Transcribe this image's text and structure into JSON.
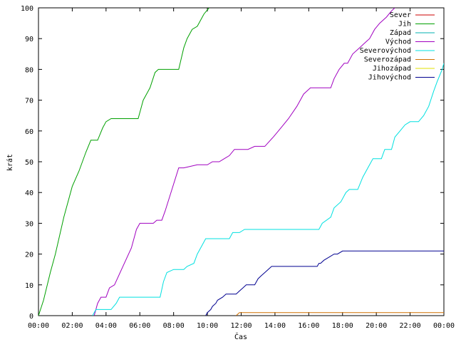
{
  "chart_data": {
    "type": "line",
    "title": "",
    "xlabel": "Čas",
    "ylabel": "krát",
    "xlim": [
      0,
      24
    ],
    "ylim": [
      0,
      100
    ],
    "x_tick_labels": [
      "00:00",
      "02:00",
      "04:00",
      "06:00",
      "08:00",
      "10:00",
      "12:00",
      "14:00",
      "16:00",
      "18:00",
      "20:00",
      "22:00",
      "00:00"
    ],
    "y_tick_labels": [
      "0",
      "10",
      "20",
      "30",
      "40",
      "50",
      "60",
      "70",
      "80",
      "90",
      "100"
    ],
    "legend_position": "top-right",
    "grid": false,
    "series": [
      {
        "name": "Sever",
        "color": "#cc0000",
        "points": []
      },
      {
        "name": "Jih",
        "color": "#00a000",
        "points": [
          [
            0,
            0
          ],
          [
            0.3,
            5
          ],
          [
            0.7,
            14
          ],
          [
            1.0,
            20
          ],
          [
            1.5,
            32
          ],
          [
            2.0,
            42
          ],
          [
            2.4,
            47
          ],
          [
            2.8,
            53
          ],
          [
            3.1,
            57
          ],
          [
            3.5,
            57
          ],
          [
            3.8,
            61
          ],
          [
            4.0,
            63
          ],
          [
            4.3,
            64
          ],
          [
            5.0,
            64
          ],
          [
            5.9,
            64
          ],
          [
            6.2,
            70
          ],
          [
            6.6,
            74
          ],
          [
            6.9,
            79
          ],
          [
            7.1,
            80
          ],
          [
            8.3,
            80
          ],
          [
            8.6,
            87
          ],
          [
            8.8,
            90
          ],
          [
            9.1,
            93
          ],
          [
            9.4,
            94
          ],
          [
            9.6,
            96
          ],
          [
            9.8,
            98
          ],
          [
            10.1,
            100
          ]
        ]
      },
      {
        "name": "Západ",
        "color": "#00b0b0",
        "points": []
      },
      {
        "name": "Východ",
        "color": "#a000c0",
        "points": [
          [
            3.3,
            0
          ],
          [
            3.5,
            4
          ],
          [
            3.7,
            6
          ],
          [
            4.0,
            6
          ],
          [
            4.2,
            9
          ],
          [
            4.5,
            10
          ],
          [
            5.0,
            16
          ],
          [
            5.5,
            22
          ],
          [
            5.8,
            28
          ],
          [
            6.0,
            30
          ],
          [
            6.4,
            30
          ],
          [
            6.8,
            30
          ],
          [
            7.0,
            31
          ],
          [
            7.3,
            31
          ],
          [
            7.5,
            34
          ],
          [
            7.9,
            41
          ],
          [
            8.3,
            48
          ],
          [
            8.6,
            48
          ],
          [
            9.4,
            49
          ],
          [
            10.0,
            49
          ],
          [
            10.3,
            50
          ],
          [
            10.7,
            50
          ],
          [
            11.0,
            51
          ],
          [
            11.3,
            52
          ],
          [
            11.6,
            54
          ],
          [
            12.4,
            54
          ],
          [
            12.8,
            55
          ],
          [
            13.4,
            55
          ],
          [
            13.9,
            58
          ],
          [
            14.2,
            60
          ],
          [
            14.5,
            62
          ],
          [
            14.8,
            64
          ],
          [
            15.3,
            68
          ],
          [
            15.7,
            72
          ],
          [
            16.1,
            74
          ],
          [
            16.6,
            74
          ],
          [
            17.3,
            74
          ],
          [
            17.5,
            77
          ],
          [
            17.8,
            80
          ],
          [
            18.1,
            82
          ],
          [
            18.3,
            82
          ],
          [
            18.6,
            85
          ],
          [
            19.0,
            87
          ],
          [
            19.4,
            89
          ],
          [
            19.6,
            90
          ],
          [
            19.9,
            93
          ],
          [
            20.2,
            95
          ],
          [
            20.6,
            97
          ],
          [
            20.9,
            99
          ],
          [
            21.1,
            100
          ]
        ]
      },
      {
        "name": "Severovýchod",
        "color": "#00e0e0",
        "points": [
          [
            3.2,
            0
          ],
          [
            3.4,
            2
          ],
          [
            4.3,
            2
          ],
          [
            4.6,
            4
          ],
          [
            4.8,
            6
          ],
          [
            5.5,
            6
          ],
          [
            7.2,
            6
          ],
          [
            7.4,
            11
          ],
          [
            7.6,
            14
          ],
          [
            8.0,
            15
          ],
          [
            8.6,
            15
          ],
          [
            8.8,
            16
          ],
          [
            9.2,
            17
          ],
          [
            9.4,
            20
          ],
          [
            9.7,
            23
          ],
          [
            9.9,
            25
          ],
          [
            11.0,
            25
          ],
          [
            11.3,
            25
          ],
          [
            11.5,
            27
          ],
          [
            11.9,
            27
          ],
          [
            12.2,
            28
          ],
          [
            13.5,
            28
          ],
          [
            16.2,
            28
          ],
          [
            16.6,
            28
          ],
          [
            16.8,
            30
          ],
          [
            17.3,
            32
          ],
          [
            17.5,
            35
          ],
          [
            17.9,
            37
          ],
          [
            18.2,
            40
          ],
          [
            18.4,
            41
          ],
          [
            18.9,
            41
          ],
          [
            19.2,
            45
          ],
          [
            19.5,
            48
          ],
          [
            19.8,
            51
          ],
          [
            20.3,
            51
          ],
          [
            20.5,
            54
          ],
          [
            20.9,
            54
          ],
          [
            21.1,
            58
          ],
          [
            21.4,
            60
          ],
          [
            21.7,
            62
          ],
          [
            22.0,
            63
          ],
          [
            22.5,
            63
          ],
          [
            22.8,
            65
          ],
          [
            23.1,
            68
          ],
          [
            23.4,
            73
          ],
          [
            23.6,
            76
          ],
          [
            23.9,
            80
          ],
          [
            24.0,
            82
          ]
        ]
      },
      {
        "name": "Severozápad",
        "color": "#d07000",
        "points": [
          [
            11.7,
            0
          ],
          [
            11.9,
            1
          ],
          [
            13.0,
            1
          ],
          [
            24.0,
            1
          ]
        ]
      },
      {
        "name": "Jihozápad",
        "color": "#e0e000",
        "points": []
      },
      {
        "name": "Jihovýchod",
        "color": "#000090",
        "points": [
          [
            9.9,
            0
          ],
          [
            10.0,
            1
          ],
          [
            10.2,
            2
          ],
          [
            10.3,
            3
          ],
          [
            10.5,
            4
          ],
          [
            10.6,
            5
          ],
          [
            10.9,
            6
          ],
          [
            11.1,
            7
          ],
          [
            11.3,
            7
          ],
          [
            11.7,
            7
          ],
          [
            11.9,
            8
          ],
          [
            12.1,
            9
          ],
          [
            12.3,
            10
          ],
          [
            12.8,
            10
          ],
          [
            13.0,
            12
          ],
          [
            13.2,
            13
          ],
          [
            13.4,
            14
          ],
          [
            13.6,
            15
          ],
          [
            13.8,
            16
          ],
          [
            14.5,
            16
          ],
          [
            16.5,
            16
          ],
          [
            16.6,
            17
          ],
          [
            16.7,
            17
          ],
          [
            16.9,
            18
          ],
          [
            17.2,
            19
          ],
          [
            17.5,
            20
          ],
          [
            17.7,
            20
          ],
          [
            18.0,
            21
          ],
          [
            20.0,
            21
          ],
          [
            24.0,
            21
          ]
        ]
      }
    ]
  }
}
